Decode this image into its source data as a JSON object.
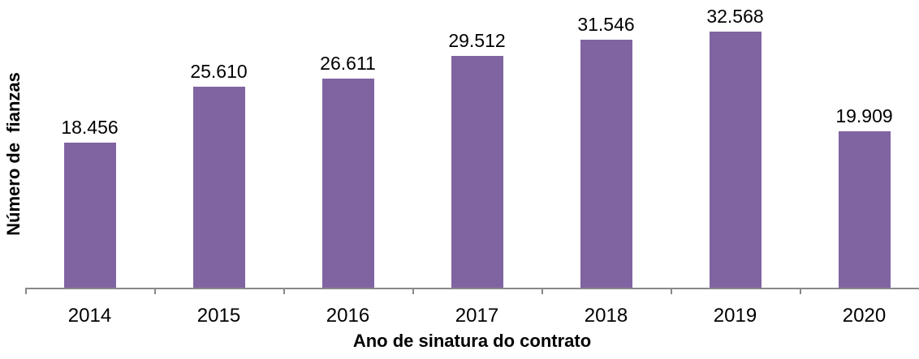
{
  "chart_data": {
    "type": "bar",
    "title": "",
    "xlabel": "Ano de sinatura do contrato",
    "ylabel": "Número de  fianzas",
    "categories": [
      "2014",
      "2015",
      "2016",
      "2017",
      "2018",
      "2019",
      "2020"
    ],
    "values": [
      18456,
      25610,
      26611,
      29512,
      31546,
      32568,
      19909
    ],
    "value_labels": [
      "18.456",
      "25.610",
      "26.611",
      "29.512",
      "31.546",
      "32.568",
      "19.909"
    ],
    "ylim": [
      0,
      32568
    ],
    "bar_color": "#8064A2",
    "axis_color": "#898989",
    "text_color": "#000000",
    "grid": false,
    "legend": "none",
    "data_labels": "above-bars",
    "y_axis_line": false,
    "x_axis_line": true
  }
}
